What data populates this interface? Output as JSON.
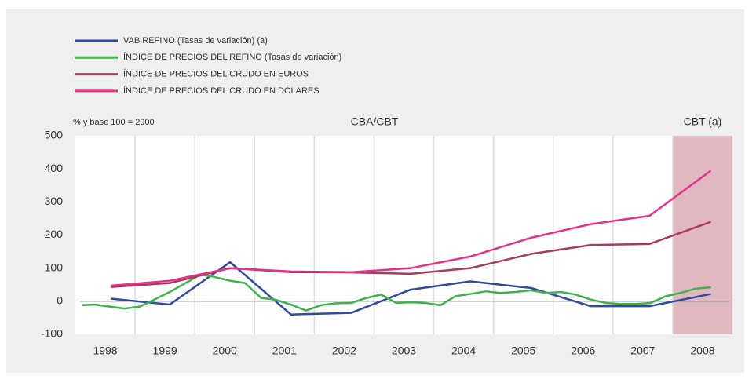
{
  "chart_data": {
    "type": "line",
    "annotations": [
      "% y base 100 = 2000",
      "CBA/CBT"
    ],
    "highlight": {
      "range": [
        2007.5,
        2008.5
      ],
      "label": "CBT (a)",
      "color": "#e2b8c0"
    },
    "xlim": [
      1997.5,
      2008.5
    ],
    "xticks": [
      1998,
      1999,
      2000,
      2001,
      2002,
      2003,
      2004,
      2005,
      2006,
      2007,
      2008
    ],
    "ylim": [
      -100,
      500
    ],
    "yticks": [
      -100,
      0,
      100,
      200,
      300,
      400,
      500
    ],
    "grid": true,
    "series": [
      {
        "name": "VAB REFINO (Tasas de variación) (a)",
        "color": "#2f4b9b",
        "x": [
          1998.09,
          1999.08,
          2000.09,
          2001.11,
          2002.12,
          2003.11,
          2004.11,
          2005.13,
          2006.13,
          2007.11,
          2008.14
        ],
        "values": [
          8,
          -10,
          118,
          -40,
          -35,
          35,
          60,
          40,
          -15,
          -15,
          22
        ]
      },
      {
        "name": "ÍNDICE DE PRECIOS DEL REFINO (Tasas de variación)",
        "color": "#3db34b",
        "x": [
          1997.61,
          1997.82,
          1998.32,
          1998.58,
          1999.08,
          1999.59,
          1999.79,
          2000.09,
          2000.34,
          2000.61,
          2000.84,
          2001.11,
          2001.36,
          2001.61,
          2001.86,
          2002.12,
          2002.37,
          2002.62,
          2002.87,
          2003.11,
          2003.36,
          2003.61,
          2003.86,
          2004.11,
          2004.37,
          2004.62,
          2004.87,
          2005.13,
          2005.38,
          2005.63,
          2005.88,
          2006.13,
          2006.38,
          2006.63,
          2006.88,
          2007.13,
          2007.38,
          2007.63,
          2007.88,
          2008.14
        ],
        "values": [
          -12,
          -10,
          -22,
          -16,
          28,
          80,
          75,
          62,
          55,
          10,
          5,
          -10,
          -28,
          -12,
          -6,
          -5,
          10,
          20,
          -5,
          -3,
          -5,
          -12,
          15,
          22,
          30,
          25,
          28,
          33,
          25,
          28,
          20,
          5,
          -5,
          -8,
          -8,
          -5,
          15,
          25,
          38,
          42
        ]
      },
      {
        "name": "ÍNDICE DE PRECIOS DEL CRUDO EN EUROS",
        "color": "#a83b60",
        "x": [
          1998.09,
          1999.08,
          2000.09,
          2001.11,
          2002.12,
          2003.11,
          2004.11,
          2005.13,
          2006.13,
          2007.11,
          2008.14
        ],
        "values": [
          43,
          55,
          100,
          88,
          87,
          83,
          100,
          143,
          170,
          173,
          240
        ]
      },
      {
        "name": "ÍNDICE DE PRECIOS DEL CRUDO EN DÓLARES",
        "color": "#e6318b",
        "x": [
          1998.09,
          1999.08,
          2000.09,
          2001.11,
          2002.12,
          2003.11,
          2004.11,
          2005.13,
          2006.13,
          2007.11,
          2008.14
        ],
        "values": [
          47,
          62,
          100,
          90,
          88,
          100,
          135,
          192,
          233,
          258,
          395
        ]
      }
    ]
  }
}
